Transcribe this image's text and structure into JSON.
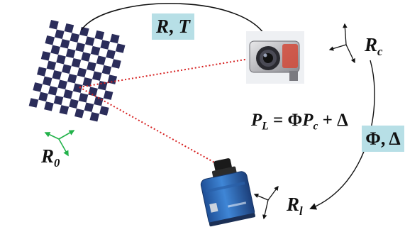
{
  "labels": {
    "rt": {
      "r": "R",
      "sep": ", ",
      "t": "T"
    },
    "r0": {
      "main": "R",
      "sub": "0"
    },
    "rc": {
      "main": "R",
      "sub": "c"
    },
    "rl": {
      "main": "R",
      "sub": "l"
    },
    "equation": {
      "lhs_main": "P",
      "lhs_sub": "L",
      "rhs": " = Φ",
      "p_main": "P",
      "p_sub": "c",
      "tail": " + Δ"
    },
    "phi_delta": {
      "phi": "Φ",
      "sep": ", ",
      "delta": "Δ"
    }
  },
  "colors": {
    "label_box": "#b7dfe6",
    "ray": "#d62020",
    "checker_dark": "#2b2d5a",
    "checker_light": "#ffffff",
    "axis_green": "#22b24a",
    "lidar_blue": "#2f6fbf"
  },
  "icons": {
    "checkerboard": "checkerboard-calibration-target",
    "camera": "camera-photo",
    "lidar": "lidar-sensor-photo"
  }
}
